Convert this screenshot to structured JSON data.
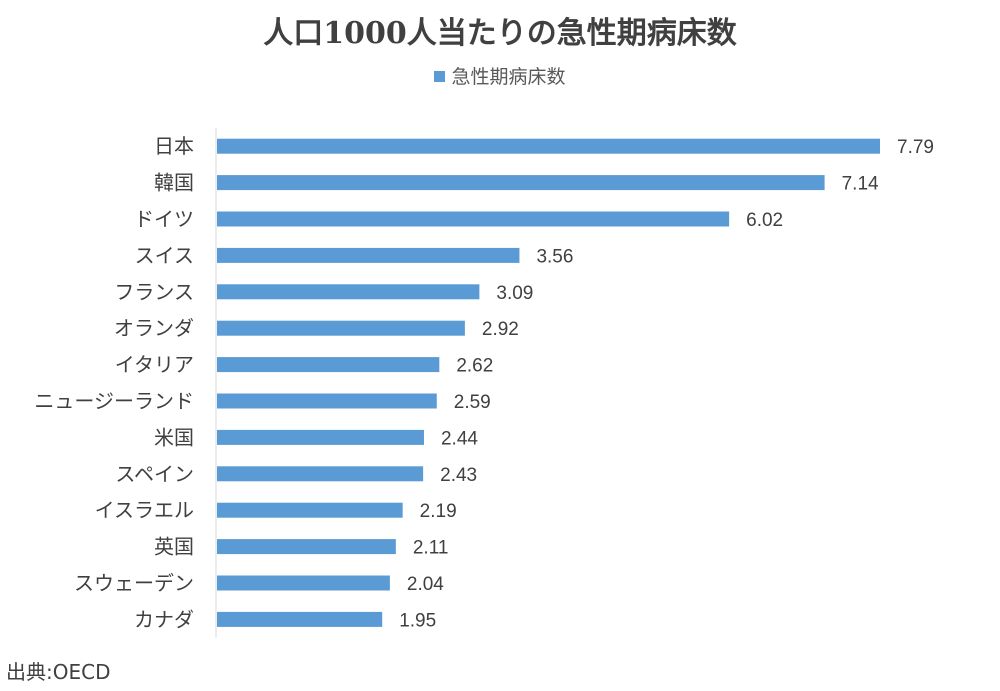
{
  "chart_data": {
    "type": "bar",
    "orientation": "horizontal",
    "title": "人口1000人当たりの急性期病床数",
    "legend": {
      "position": "top",
      "entries": [
        "急性期病床数"
      ]
    },
    "categories": [
      "日本",
      "韓国",
      "ドイツ",
      "スイス",
      "フランス",
      "オランダ",
      "イタリア",
      "ニュージーランド",
      "米国",
      "スペイン",
      "イスラエル",
      "英国",
      "スウェーデン",
      "カナダ"
    ],
    "series": [
      {
        "name": "急性期病床数",
        "values": [
          7.79,
          7.14,
          6.02,
          3.56,
          3.09,
          2.92,
          2.62,
          2.59,
          2.44,
          2.43,
          2.19,
          2.11,
          2.04,
          1.95
        ],
        "labels": [
          "7.79",
          "7.14",
          "6.02",
          "3.56",
          "3.09",
          "2.92",
          "2.62",
          "2.59",
          "2.44",
          "2.43",
          "2.19",
          "2.11",
          "2.04",
          "1.95"
        ]
      }
    ],
    "xlim": [
      0,
      8
    ],
    "grid": false,
    "colors": {
      "bar": "#5b9bd5",
      "axis": "#d9d9d9"
    }
  },
  "source": "出典:OECD"
}
